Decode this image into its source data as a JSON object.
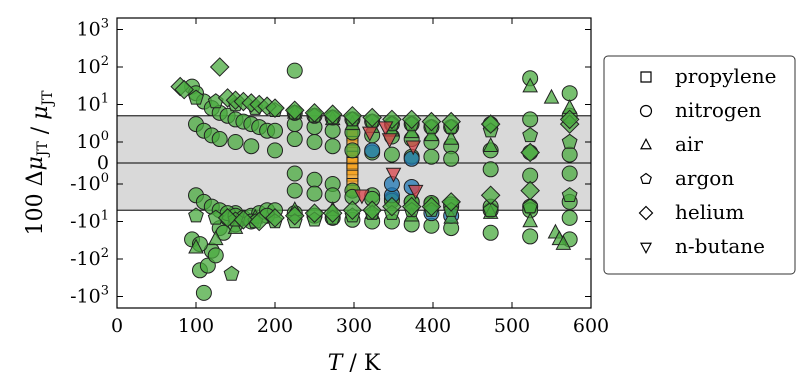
{
  "chart_data": {
    "type": "scatter",
    "xlabel": "T / K",
    "ylabel": "100 Δμ_JT / μ_JT",
    "xlim": [
      0,
      600
    ],
    "yscale": "symlog",
    "x_ticks": [
      "0",
      "100",
      "200",
      "300",
      "400",
      "500",
      "600"
    ],
    "y_ticks": [
      "10^3",
      "10^2",
      "10^1",
      "10^0",
      "0",
      "-10^0",
      "-10^1",
      "-10^2",
      "-10^3"
    ],
    "band": [
      -5,
      5
    ],
    "grid": false,
    "legend_position": "right",
    "legend": [
      "propylene",
      "nitrogen",
      "air",
      "argon",
      "helium",
      "n-butane"
    ],
    "colors": {
      "green": "#4aaa3f",
      "orange": "#f7a21b",
      "blue": "#1f77b4",
      "red": "#d8434a",
      "band": "#d9d9d9"
    },
    "series": [
      {
        "name": "propylene",
        "marker": "square",
        "color": "#f7a21b",
        "x": [
          298,
          298,
          298,
          298,
          298,
          298,
          298,
          298,
          298,
          298
        ],
        "y": [
          2.0,
          1.5,
          1.0,
          0.6,
          0.3,
          0.0,
          -0.3,
          -0.6,
          -1.0,
          -1.5
        ]
      },
      {
        "name": "nitrogen",
        "marker": "circle",
        "color": "#4aaa3f",
        "x": [
          95,
          105,
          110,
          120,
          130,
          140,
          150,
          95,
          100,
          110,
          120,
          130,
          140,
          150,
          160,
          170,
          180,
          190,
          200,
          100,
          110,
          120,
          130,
          150,
          170,
          200,
          100,
          110,
          120,
          130,
          140,
          150,
          160,
          170,
          180,
          190,
          200,
          105,
          115,
          125,
          135,
          150,
          170,
          190,
          225,
          250,
          273,
          298,
          323,
          348,
          373,
          398,
          423,
          473,
          523,
          573,
          225,
          250,
          273,
          298,
          323,
          348,
          373,
          398,
          423,
          473,
          523,
          573,
          225,
          250,
          273,
          298,
          323,
          348,
          373,
          398,
          423,
          473,
          523,
          573,
          225,
          250,
          273,
          298,
          323,
          348,
          373,
          398,
          423,
          473,
          523,
          573,
          225,
          250,
          273,
          298,
          323,
          348,
          373,
          398,
          423,
          473,
          523,
          573,
          225,
          250,
          273,
          298,
          323,
          348,
          373,
          398,
          423,
          473,
          523,
          573,
          225,
          523,
          573
        ],
        "y": [
          -30,
          -200,
          -800,
          -60,
          -15,
          -8,
          -6,
          30,
          20,
          12,
          8,
          6,
          5,
          4,
          3.5,
          3,
          2.5,
          2,
          2,
          3,
          2,
          1.5,
          1.2,
          1,
          0.8,
          0.6,
          -2,
          -3,
          -4,
          -5,
          -6,
          -7,
          -8,
          -7,
          -6,
          -5,
          -5,
          -40,
          -150,
          -80,
          -20,
          -12,
          -10,
          -7,
          3,
          2.5,
          2,
          1.8,
          1.5,
          1.4,
          1.2,
          1,
          0.8,
          0.6,
          0.5,
          0.4,
          -0.5,
          -0.8,
          -1,
          -1.5,
          -2,
          -2.5,
          -3,
          -3.5,
          -4,
          -5,
          -4,
          -3,
          1.2,
          1.0,
          0.8,
          0.6,
          0.5,
          0.4,
          0.3,
          0.3,
          0.2,
          -0.3,
          -0.6,
          -0.5,
          6,
          5,
          4.5,
          4,
          3.5,
          3,
          3,
          2.5,
          2.5,
          3,
          4,
          5,
          -6,
          -7,
          -8,
          -9,
          -10,
          -10,
          -12,
          -13,
          -15,
          -20,
          -25,
          -30,
          -1.5,
          -1.8,
          -2,
          -2.2,
          -2.5,
          -2.8,
          -3,
          -3.2,
          -3.5,
          -4,
          -5,
          -8,
          80,
          50,
          20
        ]
      },
      {
        "name": "nitrogen",
        "marker": "circle",
        "color": "#1f77b4",
        "x": [
          323,
          348,
          373,
          398,
          423,
          348,
          373
        ],
        "y": [
          0.6,
          -2.0,
          0.2,
          -6.0,
          -7.0,
          -1.0,
          -1.2
        ]
      },
      {
        "name": "air",
        "marker": "triangle",
        "color": "#4aaa3f",
        "x": [
          100,
          125,
          150,
          175,
          225,
          273,
          298,
          323,
          348,
          373,
          398,
          423,
          473,
          523,
          550,
          555,
          560,
          565,
          573,
          523,
          473,
          423,
          373,
          323,
          273,
          225
        ],
        "y": [
          -50,
          -30,
          -15,
          -8,
          6,
          4,
          3,
          2.5,
          2,
          1.8,
          1.5,
          1.2,
          0.8,
          30,
          15,
          -20,
          -30,
          -40,
          8,
          -10,
          -6,
          -8,
          -7,
          -6,
          -5,
          -5
        ]
      },
      {
        "name": "argon",
        "marker": "pentagon",
        "color": "#4aaa3f",
        "x": [
          100,
          125,
          150,
          175,
          200,
          225,
          250,
          273,
          298,
          323,
          348,
          373,
          398,
          423,
          473,
          523,
          573,
          100,
          125,
          150,
          175,
          200,
          225,
          250,
          273,
          298,
          323,
          348,
          373,
          398,
          423,
          473,
          523,
          573,
          145
        ],
        "y": [
          15,
          12,
          10,
          8,
          7,
          6,
          5,
          4.5,
          4,
          3.5,
          3,
          3,
          2.5,
          2.5,
          2,
          1.5,
          1,
          -7,
          -8,
          -9,
          -10,
          -10,
          -10,
          -9,
          -8,
          -7,
          -6,
          -6,
          -5,
          -5,
          -5,
          -5,
          -4,
          -2,
          -250
        ]
      },
      {
        "name": "helium",
        "marker": "diamond",
        "color": "#4aaa3f",
        "x": [
          80,
          85,
          140,
          150,
          160,
          170,
          180,
          190,
          200,
          225,
          250,
          273,
          298,
          323,
          348,
          373,
          398,
          423,
          473,
          523,
          573,
          140,
          160,
          180,
          200,
          225,
          250,
          273,
          298,
          323,
          348,
          373,
          398,
          423,
          473,
          523,
          573,
          130
        ],
        "y": [
          30,
          25,
          15,
          13,
          12,
          11,
          10,
          9,
          8,
          7,
          6,
          5.5,
          5,
          4.5,
          4,
          4,
          3.5,
          3.5,
          3,
          -1.5,
          3,
          -8,
          -9,
          -10,
          -8,
          -7,
          -6,
          -6,
          -5,
          -5,
          -4,
          -4,
          -4,
          -3,
          -2,
          0.5,
          4,
          100
        ]
      },
      {
        "name": "n-butane",
        "marker": "triangle-down",
        "color": "#d8434a",
        "x": [
          310,
          340,
          345,
          375,
          378,
          350,
          320
        ],
        "y": [
          -2,
          2.5,
          1.2,
          0.8,
          -1.5,
          -0.5,
          1.8
        ]
      }
    ]
  }
}
